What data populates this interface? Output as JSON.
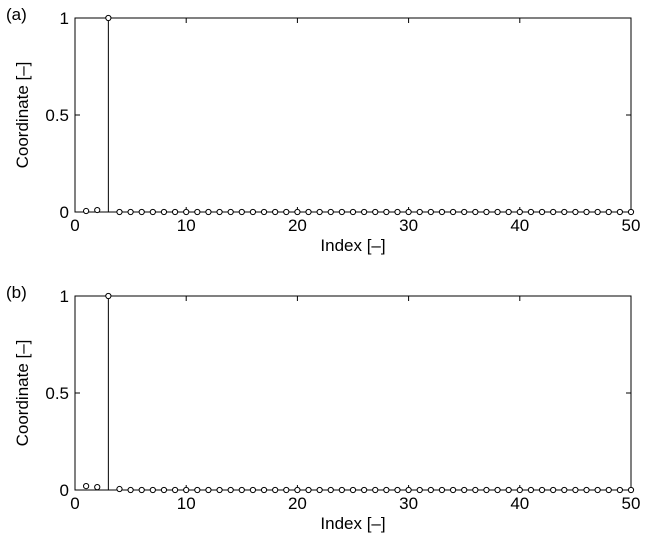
{
  "colors": {
    "background": "#ffffff",
    "ink": "#000000"
  },
  "chart_data": [
    {
      "type": "stem",
      "panel_label": "(a)",
      "xlabel": "Index [–]",
      "ylabel": "Coordinate [–]",
      "xlim": [
        0,
        50
      ],
      "ylim": [
        0,
        1
      ],
      "x_ticks": [
        0,
        10,
        20,
        30,
        40,
        50
      ],
      "x_tick_labels": [
        "0",
        "10",
        "20",
        "30",
        "40",
        "50"
      ],
      "y_ticks": [
        0,
        0.5,
        1
      ],
      "y_tick_labels": [
        "0",
        "0.5",
        "1"
      ],
      "grid": false,
      "marker": "open-circle",
      "x": [
        1,
        2,
        3,
        4,
        5,
        6,
        7,
        8,
        9,
        10,
        11,
        12,
        13,
        14,
        15,
        16,
        17,
        18,
        19,
        20,
        21,
        22,
        23,
        24,
        25,
        26,
        27,
        28,
        29,
        30,
        31,
        32,
        33,
        34,
        35,
        36,
        37,
        38,
        39,
        40,
        41,
        42,
        43,
        44,
        45,
        46,
        47,
        48,
        49,
        50
      ],
      "values": [
        0.005,
        0.01,
        1,
        0,
        0,
        0,
        0,
        0,
        0,
        0,
        0,
        0,
        0,
        0,
        0,
        0,
        0,
        0,
        0,
        0,
        0,
        0,
        0,
        0,
        0,
        0,
        0,
        0,
        0,
        0,
        0,
        0,
        0,
        0,
        0,
        0,
        0,
        0,
        0,
        0,
        0,
        0,
        0,
        0,
        0,
        0,
        0,
        0,
        0,
        0
      ]
    },
    {
      "type": "stem",
      "panel_label": "(b)",
      "xlabel": "Index [–]",
      "ylabel": "Coordinate [–]",
      "xlim": [
        0,
        50
      ],
      "ylim": [
        0,
        1
      ],
      "x_ticks": [
        0,
        10,
        20,
        30,
        40,
        50
      ],
      "x_tick_labels": [
        "0",
        "10",
        "20",
        "30",
        "40",
        "50"
      ],
      "y_ticks": [
        0,
        0.5,
        1
      ],
      "y_tick_labels": [
        "0",
        "0.5",
        "1"
      ],
      "grid": false,
      "marker": "open-circle",
      "x": [
        1,
        2,
        3,
        4,
        5,
        6,
        7,
        8,
        9,
        10,
        11,
        12,
        13,
        14,
        15,
        16,
        17,
        18,
        19,
        20,
        21,
        22,
        23,
        24,
        25,
        26,
        27,
        28,
        29,
        30,
        31,
        32,
        33,
        34,
        35,
        36,
        37,
        38,
        39,
        40,
        41,
        42,
        43,
        44,
        45,
        46,
        47,
        48,
        49,
        50
      ],
      "values": [
        0.02,
        0.015,
        1,
        0.005,
        0,
        0,
        0,
        0,
        0,
        0,
        0,
        0,
        0,
        0,
        0,
        0,
        0,
        0,
        0,
        0,
        0,
        0,
        0,
        0,
        0,
        0,
        0,
        0,
        0,
        0,
        0,
        0,
        0,
        0,
        0,
        0,
        0,
        0,
        0,
        0,
        0,
        0,
        0,
        0,
        0,
        0,
        0,
        0,
        0,
        0
      ]
    }
  ]
}
